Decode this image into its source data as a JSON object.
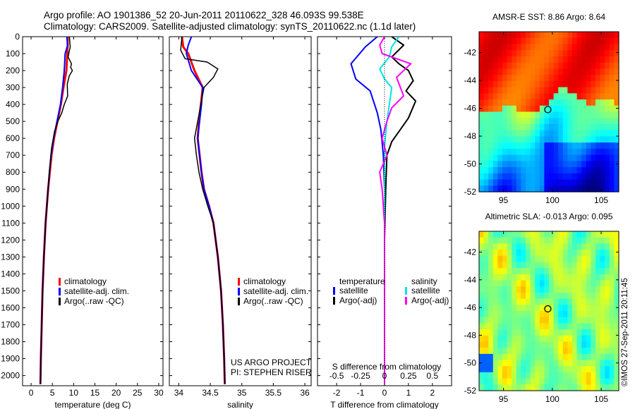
{
  "header": {
    "line1": "Argo profile: AO 1901386_52 20-Jun-2011 20110622_328 46.093S 99.538E",
    "line2": "Climatology: CARS2009. Satellite-adjusted climatology: synTS_20110622.nc (1.1d later)"
  },
  "stamp": "©IMOS 27-Sep-2011 20:11:45",
  "colors": {
    "climatology": "#ff0000",
    "satellite": "#0000ff",
    "argo": "#000000",
    "sat_s": "#00e5e5",
    "argo_s": "#ff00ff",
    "marker": "#000000"
  },
  "chart_data": [
    {
      "id": "temperature",
      "type": "line",
      "xlabel": "temperature (deg C)",
      "ylabel": "",
      "xlim": [
        -2,
        31
      ],
      "ylim": [
        2060,
        0
      ],
      "xticks": [
        0,
        5,
        10,
        15,
        20,
        25,
        30
      ],
      "xtick_labels": [
        "0",
        "5",
        "10",
        "15",
        "20",
        "25",
        "30"
      ],
      "yticks": [
        0,
        100,
        200,
        300,
        400,
        500,
        600,
        700,
        800,
        900,
        1000,
        1100,
        1200,
        1300,
        1400,
        1500,
        1600,
        1700,
        1800,
        1900,
        2000
      ],
      "ytick_labels": [
        "0",
        "100",
        "200",
        "300",
        "400",
        "500",
        "600",
        "700",
        "800",
        "900",
        "1000",
        "1100",
        "1200",
        "1300",
        "1400",
        "1500",
        "1600",
        "1700",
        "1800",
        "1900",
        "2000"
      ],
      "legend": {
        "position": "lower-middle",
        "entries": [
          {
            "label": "climatology",
            "color": "#ff0000"
          },
          {
            "label": "satellite-adj. clim.",
            "color": "#0000ff"
          },
          {
            "label": "Argo(..raw -QC)",
            "color": "#000000"
          }
        ]
      },
      "series": [
        {
          "name": "climatology",
          "color": "#ff0000",
          "width": 3,
          "x": [
            8.6,
            8.6,
            8.5,
            8.3,
            7.6,
            7.0,
            6.2,
            5.4,
            4.8,
            4.4,
            4.0,
            3.7,
            3.4,
            3.0,
            2.7,
            2.5,
            2.3,
            2.2
          ],
          "y": [
            0,
            50,
            100,
            200,
            300,
            400,
            500,
            600,
            700,
            800,
            900,
            1000,
            1100,
            1300,
            1500,
            1700,
            1900,
            2050
          ]
        },
        {
          "name": "satellite-adj. clim.",
          "color": "#0000ff",
          "width": 2,
          "x": [
            8.4,
            8.6,
            8.0,
            7.8,
            7.4,
            6.9,
            6.1,
            5.3,
            4.7,
            4.3,
            4.0,
            3.7,
            3.4,
            3.0,
            2.7,
            2.5,
            2.3,
            2.2
          ],
          "y": [
            0,
            50,
            100,
            200,
            300,
            400,
            500,
            600,
            700,
            800,
            900,
            1000,
            1100,
            1300,
            1500,
            1700,
            1900,
            2050
          ]
        },
        {
          "name": "Argo(..raw -QC)",
          "color": "#000000",
          "width": 1.5,
          "x": [
            9.0,
            9.2,
            8.7,
            9.5,
            9.3,
            9.7,
            9.0,
            8.5,
            8.6,
            7.8,
            7.2,
            6.3,
            5.5,
            4.8,
            4.4,
            4.0,
            3.7,
            3.4,
            3.0,
            2.7,
            2.5,
            2.3,
            2.2
          ],
          "y": [
            0,
            60,
            120,
            160,
            180,
            200,
            230,
            280,
            350,
            400,
            450,
            500,
            560,
            660,
            770,
            900,
            1000,
            1100,
            1300,
            1500,
            1700,
            1900,
            2050
          ]
        }
      ]
    },
    {
      "id": "salinity",
      "type": "line",
      "xlabel": "salinity",
      "ylabel": "",
      "xlim": [
        33.85,
        36.1
      ],
      "ylim": [
        2060,
        0
      ],
      "xticks": [
        34,
        34.5,
        35,
        35.5,
        36
      ],
      "xtick_labels": [
        "34",
        "34.5",
        "35",
        "35.5",
        "36"
      ],
      "legend": {
        "position": "lower-middle",
        "entries": [
          {
            "label": "climatology",
            "color": "#ff0000"
          },
          {
            "label": "satellite-adj. clim.",
            "color": "#0000ff"
          },
          {
            "label": "Argo(..raw -QC)",
            "color": "#000000"
          }
        ]
      },
      "annotation": [
        "US ARGO PROJECT",
        "PI: STEPHEN RISER"
      ],
      "series": [
        {
          "name": "climatology",
          "color": "#ff0000",
          "width": 3,
          "x": [
            34.05,
            34.07,
            34.15,
            34.25,
            34.38,
            34.35,
            34.32,
            34.3,
            34.33,
            34.36,
            34.4,
            34.48,
            34.55,
            34.62,
            34.67,
            34.7,
            34.72,
            34.73
          ],
          "y": [
            0,
            60,
            100,
            200,
            300,
            400,
            500,
            600,
            700,
            800,
            900,
            1000,
            1100,
            1300,
            1500,
            1700,
            1900,
            2050
          ]
        },
        {
          "name": "satellite-adj. clim.",
          "color": "#0000ff",
          "width": 2,
          "x": [
            34.2,
            34.15,
            34.12,
            34.2,
            34.38,
            34.36,
            34.33,
            34.3,
            34.33,
            34.36,
            34.4,
            34.48,
            34.55,
            34.62,
            34.67,
            34.7,
            34.72,
            34.73
          ],
          "y": [
            0,
            50,
            100,
            200,
            300,
            400,
            500,
            600,
            700,
            800,
            900,
            1000,
            1100,
            1300,
            1500,
            1700,
            1900,
            2050
          ]
        },
        {
          "name": "Argo(..raw -QC)",
          "color": "#000000",
          "width": 1.5,
          "x": [
            34.05,
            34.03,
            34.1,
            34.45,
            34.62,
            34.55,
            34.4,
            34.35,
            34.3,
            34.25,
            34.28,
            34.32,
            34.38,
            34.46,
            34.55,
            34.62,
            34.67,
            34.7,
            34.72,
            34.73
          ],
          "y": [
            0,
            80,
            130,
            150,
            190,
            240,
            300,
            400,
            500,
            600,
            700,
            800,
            900,
            1000,
            1100,
            1300,
            1500,
            1700,
            1900,
            2050
          ]
        }
      ]
    },
    {
      "id": "difference",
      "type": "line",
      "xlabel": "T difference from climatology",
      "top_label": "S difference from climatology",
      "ylabel": "",
      "xlim": [
        -2.8,
        2.8
      ],
      "ylim": [
        2060,
        0
      ],
      "xticks": [
        -2,
        -1,
        0,
        1,
        2
      ],
      "xtick_labels": [
        "-2",
        "-1",
        "0",
        "1",
        "2"
      ],
      "s_ticks": [
        -0.5,
        -0.25,
        0,
        0.25,
        0.5
      ],
      "s_tick_labels": [
        "-0.5",
        "-0.25",
        "0",
        "0.25",
        "0.5"
      ],
      "legend": {
        "position": "lower-middle",
        "temperature_title": "temperature",
        "salinity_title": "salinity",
        "entries": [
          {
            "label": "satellite",
            "color": "#0000ff"
          },
          {
            "label": "Argo(-adj)",
            "color": "#000000"
          },
          {
            "label": "satellite",
            "color": "#00e5e5"
          },
          {
            "label": "Argo(-adj)",
            "color": "#ff00ff"
          }
        ]
      },
      "series": [
        {
          "name": "satellite",
          "color": "#0000ff",
          "width": 2,
          "x": [
            -0.3,
            -0.8,
            -1.4,
            -1.2,
            -0.6,
            -0.3,
            -0.15,
            -0.05,
            0,
            0,
            0,
            0
          ],
          "y": [
            0,
            60,
            160,
            250,
            320,
            450,
            550,
            700,
            900,
            1200,
            1600,
            2050
          ]
        },
        {
          "name": "Argo(-adj)",
          "color": "#000000",
          "width": 2,
          "x": [
            0.3,
            0.8,
            0.3,
            0.6,
            1.0,
            1.2,
            0.9,
            1.3,
            1.0,
            0.6,
            0.3,
            0.1,
            0.05,
            0,
            0,
            0
          ],
          "y": [
            0,
            50,
            120,
            160,
            200,
            260,
            320,
            380,
            480,
            560,
            620,
            700,
            900,
            1200,
            1600,
            2050
          ]
        },
        {
          "name": "satellite",
          "color": "#00e5e5",
          "width": 2,
          "x": [
            0.6,
            0.3,
            0.2,
            -0.2,
            0.0,
            0.3,
            0.2,
            0.1,
            0.0,
            0.0,
            0.0,
            0.0
          ],
          "y": [
            0,
            60,
            120,
            190,
            250,
            300,
            400,
            500,
            650,
            900,
            1300,
            2050
          ]
        },
        {
          "name": "Argo(-adj)",
          "color": "#ff00ff",
          "width": 2,
          "x": [
            0.0,
            -0.2,
            -0.1,
            1.1,
            0.5,
            0.8,
            0.3,
            0.1,
            -0.1,
            0.1,
            -0.2,
            -0.1,
            0.0,
            0.0,
            0.0
          ],
          "y": [
            0,
            50,
            100,
            160,
            240,
            350,
            420,
            500,
            600,
            700,
            800,
            900,
            1100,
            1400,
            2050
          ]
        }
      ]
    },
    {
      "id": "sst_map",
      "type": "heatmap",
      "title": "AMSR-E SST: 8.86 Argo: 8.64",
      "xlim": [
        92.5,
        106.8
      ],
      "ylim": [
        -52,
        -40.5
      ],
      "xticks": [
        95,
        100,
        105
      ],
      "xtick_labels": [
        "95",
        "100",
        "105"
      ],
      "yticks": [
        -52,
        -50,
        -48,
        -46,
        -44,
        -42
      ],
      "ytick_labels": [
        "-52",
        "-50",
        "-48",
        "-46",
        "-44",
        "-42"
      ],
      "marker": {
        "lon": 99.538,
        "lat": -46.093
      }
    },
    {
      "id": "sla_map",
      "type": "heatmap",
      "title": "Altimetric SLA: -0.013 Argo: 0.095",
      "xlim": [
        92.5,
        106.8
      ],
      "ylim": [
        -52,
        -40.5
      ],
      "xticks": [
        95,
        100,
        105
      ],
      "xtick_labels": [
        "95",
        "100",
        "105"
      ],
      "yticks": [
        -52,
        -50,
        -48,
        -46,
        -44,
        -42
      ],
      "ytick_labels": [
        "-52",
        "-50",
        "-48",
        "-46",
        "-44",
        "-42"
      ],
      "marker": {
        "lon": 99.538,
        "lat": -46.093
      }
    }
  ]
}
